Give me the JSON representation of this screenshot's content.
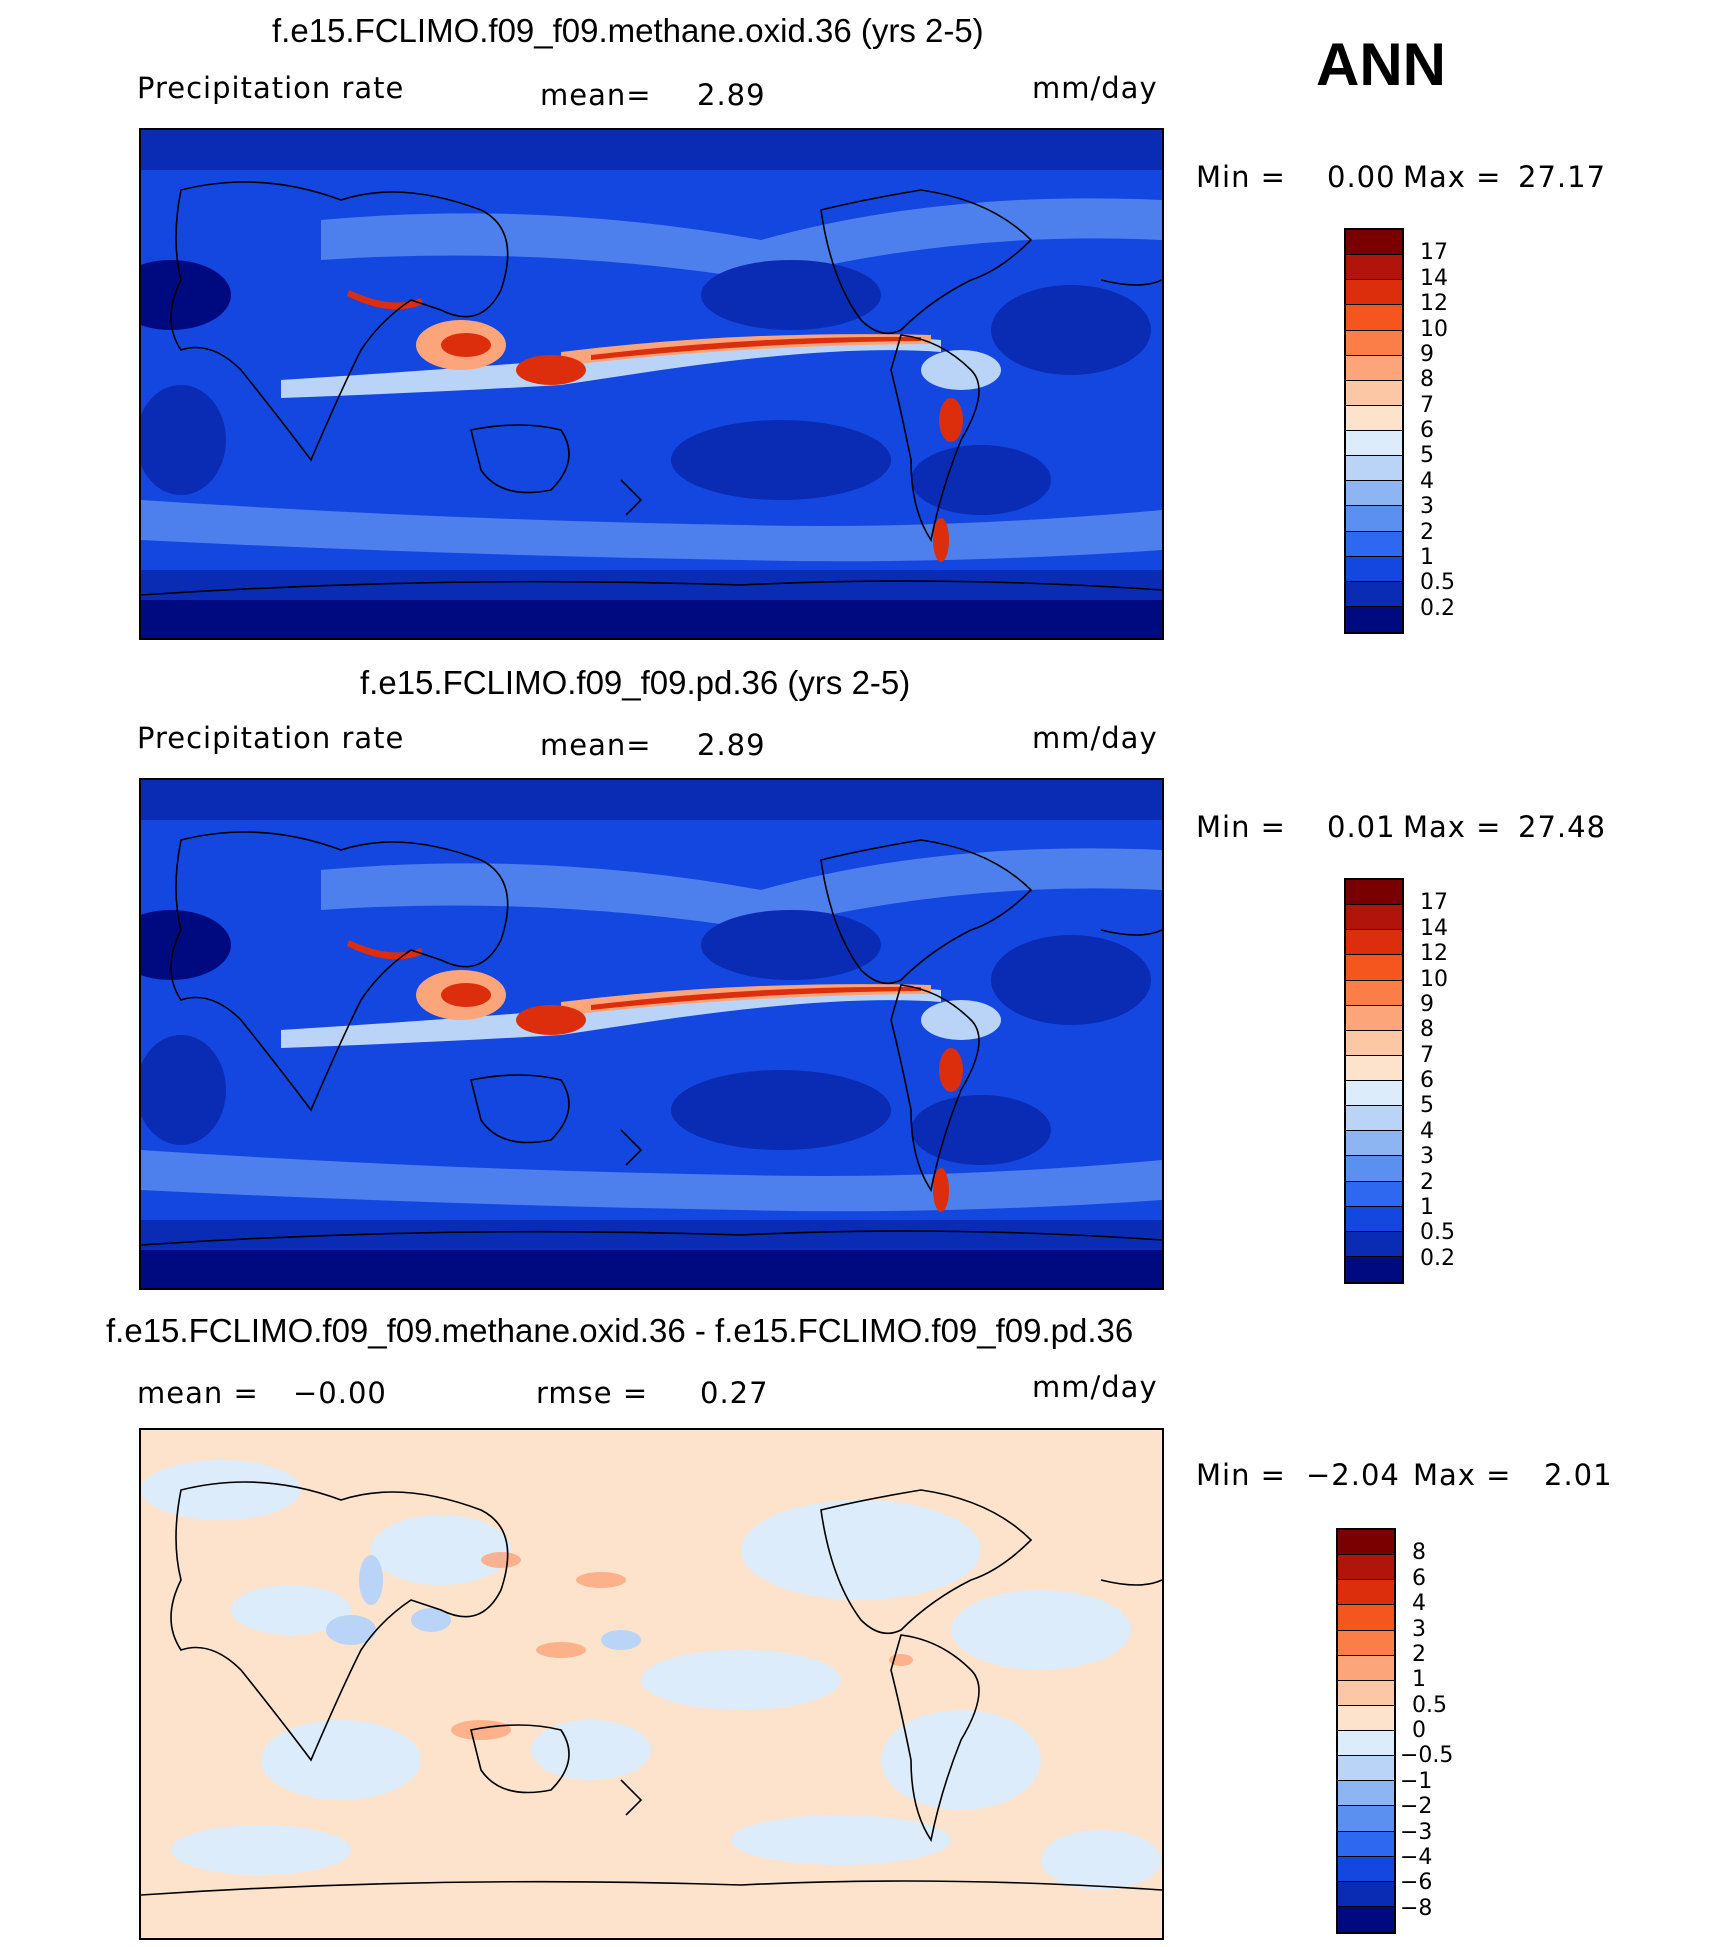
{
  "season": "ANN",
  "units_label": "mm/day",
  "panels": [
    {
      "title": "f.e15.FCLIMO.f09_f09.methane.oxid.36 (yrs 2-5)",
      "left_label": "Precipitation  rate",
      "mid_label": "mean=",
      "mid_value": "2.89",
      "right_label": "mm/day",
      "min_label": "Min  =",
      "min_value": "0.00",
      "max_label": "Max  =",
      "max_value": "27.17",
      "colorbar": {
        "labels": [
          "17",
          "14",
          "12",
          "10",
          "9",
          "8",
          "7",
          "6",
          "5",
          "4",
          "3",
          "2",
          "1",
          "0.5",
          "0.2"
        ],
        "colors": [
          "#7a0000",
          "#b0140a",
          "#dc2e0c",
          "#f4561e",
          "#fb7e48",
          "#fca57b",
          "#fcc7a4",
          "#fde3cc",
          "#dcecfb",
          "#b9d4f7",
          "#8db5f1",
          "#5b8ff0",
          "#2f68f0",
          "#1447e0",
          "#0a2bb4",
          "#000a80"
        ]
      }
    },
    {
      "title": "f.e15.FCLIMO.f09_f09.pd.36 (yrs 2-5)",
      "left_label": "Precipitation  rate",
      "mid_label": "mean=",
      "mid_value": "2.89",
      "right_label": "mm/day",
      "min_label": "Min  =",
      "min_value": "0.01",
      "max_label": "Max  =",
      "max_value": "27.48",
      "colorbar": {
        "labels": [
          "17",
          "14",
          "12",
          "10",
          "9",
          "8",
          "7",
          "6",
          "5",
          "4",
          "3",
          "2",
          "1",
          "0.5",
          "0.2"
        ],
        "colors": [
          "#7a0000",
          "#b0140a",
          "#dc2e0c",
          "#f4561e",
          "#fb7e48",
          "#fca57b",
          "#fcc7a4",
          "#fde3cc",
          "#dcecfb",
          "#b9d4f7",
          "#8db5f1",
          "#5b8ff0",
          "#2f68f0",
          "#1447e0",
          "#0a2bb4",
          "#000a80"
        ]
      }
    },
    {
      "title": "f.e15.FCLIMO.f09_f09.methane.oxid.36 - f.e15.FCLIMO.f09_f09.pd.36",
      "left_label": "mean  =",
      "left_value": "−0.00",
      "mid_label": "rmse  =",
      "mid_value": "0.27",
      "right_label": "mm/day",
      "min_label": "Min  =",
      "min_value": "−2.04",
      "max_label": "Max  =",
      "max_value": "2.01",
      "colorbar": {
        "labels": [
          "8",
          "6",
          "4",
          "3",
          "2",
          "1",
          "0.5",
          "0",
          "−0.5",
          "−1",
          "−2",
          "−3",
          "−4",
          "−6",
          "−8"
        ],
        "colors": [
          "#7a0000",
          "#b0140a",
          "#dc2e0c",
          "#f4561e",
          "#fb7e48",
          "#fca57b",
          "#fcc7a4",
          "#fde3cc",
          "#dcecfb",
          "#b9d4f7",
          "#8db5f1",
          "#5b8ff0",
          "#2f68f0",
          "#1447e0",
          "#0a2bb4",
          "#000a80"
        ]
      }
    }
  ]
}
